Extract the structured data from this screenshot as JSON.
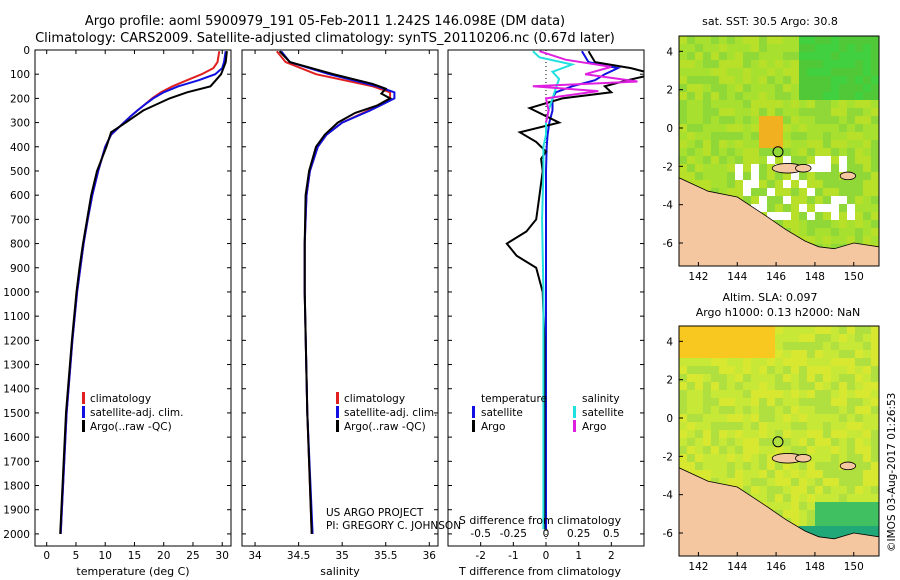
{
  "title": {
    "line1": "Argo profile: aoml 5900979_191 05-Feb-2011 1.242S 146.098E (DM data)",
    "line2": "Climatology: CARS2009. Satellite-adjusted climatology: synTS_20110206.nc (0.67d later)"
  },
  "colors": {
    "climatology": "#e02020",
    "satellite": "#1010e0",
    "argo": "#000000",
    "sat_s": "#20e0e0",
    "argo_s": "#e020e0",
    "land": "#f5c7a0"
  },
  "chart_data": [
    {
      "type": "line",
      "name": "temperature",
      "xlabel": "temperature (deg C)",
      "ylabel": "",
      "xlim": [
        -2,
        31.5
      ],
      "ylim": [
        2050,
        0
      ],
      "xticks": [
        0,
        5,
        10,
        15,
        20,
        25,
        30
      ],
      "yticks": [
        0,
        100,
        200,
        300,
        400,
        500,
        600,
        700,
        800,
        900,
        1000,
        1100,
        1200,
        1300,
        1400,
        1500,
        1600,
        1700,
        1800,
        1900,
        2000
      ],
      "legend": [
        "climatology",
        "satellite-adj. clim.",
        "Argo(..raw -QC)"
      ],
      "series": [
        {
          "name": "climatology",
          "color": "#e02020",
          "depth": [
            5,
            50,
            75,
            100,
            125,
            150,
            175,
            200,
            225,
            250,
            275,
            300,
            350,
            400,
            500,
            600,
            700,
            800,
            1000,
            1200,
            1500,
            2000
          ],
          "values": [
            29.5,
            29.2,
            28.5,
            26.5,
            24.0,
            21.5,
            19.5,
            18.0,
            16.8,
            15.5,
            14.3,
            13.2,
            11.0,
            10.0,
            8.8,
            7.8,
            7.0,
            6.3,
            5.2,
            4.4,
            3.4,
            2.4
          ]
        },
        {
          "name": "satellite-adj. clim.",
          "color": "#1010e0",
          "depth": [
            5,
            50,
            75,
            100,
            125,
            150,
            175,
            200,
            225,
            250,
            275,
            300,
            350,
            400,
            500,
            600,
            700,
            800,
            1000,
            1200,
            1500,
            2000
          ],
          "values": [
            30.6,
            30.3,
            30.0,
            28.8,
            26.0,
            22.5,
            20.0,
            18.2,
            16.8,
            15.5,
            14.3,
            13.2,
            11.0,
            10.0,
            8.8,
            7.8,
            7.0,
            6.3,
            5.2,
            4.4,
            3.4,
            2.4
          ]
        },
        {
          "name": "Argo(..raw -QC)",
          "color": "#000000",
          "depth": [
            5,
            50,
            100,
            150,
            175,
            200,
            250,
            300,
            340,
            400,
            500,
            600,
            700,
            800,
            900,
            1000,
            1200,
            1500,
            2000
          ],
          "values": [
            30.8,
            30.6,
            29.8,
            28.0,
            24.0,
            21.0,
            16.5,
            13.5,
            11.0,
            10.2,
            8.6,
            7.6,
            6.9,
            6.2,
            5.6,
            5.1,
            4.3,
            3.3,
            2.3
          ]
        }
      ]
    },
    {
      "type": "line",
      "name": "salinity",
      "xlabel": "salinity",
      "ylabel": "",
      "xlim": [
        33.85,
        36.1
      ],
      "ylim": [
        2050,
        0
      ],
      "xticks": [
        34,
        34.5,
        35,
        35.5,
        36
      ],
      "legend": [
        "climatology",
        "satellite-adj. clim.",
        "Argo(..raw -QC)"
      ],
      "annotations": [
        "US ARGO PROJECT",
        "PI: GREGORY C. JOHNSON"
      ],
      "series": [
        {
          "name": "climatology",
          "color": "#e02020",
          "depth": [
            5,
            50,
            100,
            150,
            175,
            200,
            250,
            300,
            350,
            400,
            500,
            600,
            800,
            1000,
            1500,
            2000
          ],
          "values": [
            34.25,
            34.35,
            34.7,
            35.35,
            35.55,
            35.55,
            35.3,
            35.0,
            34.82,
            34.72,
            34.63,
            34.59,
            34.57,
            34.57,
            34.6,
            34.65
          ]
        },
        {
          "name": "satellite-adj. clim.",
          "color": "#1010e0",
          "depth": [
            5,
            50,
            100,
            150,
            175,
            200,
            250,
            300,
            350,
            400,
            500,
            600,
            800,
            1000,
            1500,
            2000
          ],
          "values": [
            34.3,
            34.4,
            34.85,
            35.4,
            35.6,
            35.6,
            35.32,
            35.0,
            34.82,
            34.72,
            34.63,
            34.59,
            34.57,
            34.57,
            34.6,
            34.66
          ]
        },
        {
          "name": "Argo(..raw -QC)",
          "color": "#000000",
          "depth": [
            5,
            50,
            100,
            140,
            160,
            180,
            200,
            230,
            260,
            300,
            350,
            400,
            500,
            600,
            800,
            1000,
            1500,
            2000
          ],
          "values": [
            34.28,
            34.4,
            34.9,
            35.35,
            35.5,
            35.45,
            35.55,
            35.4,
            35.15,
            34.95,
            34.8,
            34.7,
            34.62,
            34.58,
            34.57,
            34.57,
            34.6,
            34.65
          ]
        }
      ]
    },
    {
      "type": "line",
      "name": "difference",
      "xlabel": "T difference from climatology",
      "xlabel_top": "S difference from climatology",
      "xlim": [
        -3,
        3
      ],
      "ylim": [
        2050,
        0
      ],
      "xticks_T": [
        -2,
        -1,
        0,
        1,
        2
      ],
      "xticks_S": [
        -0.5,
        -0.25,
        0,
        0.25,
        0.5
      ],
      "legend_titles": [
        "temperature",
        "salinity"
      ],
      "legend": [
        "satellite",
        "Argo",
        "satellite",
        "Argo"
      ],
      "series": [
        {
          "name": "satellite",
          "group": "temperature",
          "color": "#1010e0",
          "depth": [
            5,
            50,
            75,
            100,
            125,
            150,
            175,
            200,
            250,
            300,
            350,
            400,
            500,
            700,
            1000,
            1500,
            1980
          ],
          "values": [
            1.1,
            1.3,
            2.2,
            1.8,
            1.5,
            0.8,
            0.3,
            0.2,
            0.2,
            0.1,
            0.05,
            0.02,
            0.0,
            0.0,
            0.0,
            0.0,
            0.0
          ]
        },
        {
          "name": "Argo",
          "group": "temperature",
          "color": "#000000",
          "depth": [
            5,
            50,
            75,
            100,
            125,
            150,
            175,
            200,
            240,
            300,
            340,
            380,
            420,
            450,
            500,
            600,
            700,
            750,
            800,
            850,
            900,
            1000,
            1200,
            1500,
            1980
          ],
          "values": [
            1.3,
            1.5,
            2.6,
            3.3,
            2.5,
            1.8,
            2.0,
            0.5,
            -0.5,
            0.4,
            -0.8,
            -0.3,
            0.0,
            -0.15,
            -0.1,
            -0.2,
            -0.3,
            -0.6,
            -1.2,
            -0.9,
            -0.3,
            -0.1,
            -0.05,
            -0.05,
            -0.05
          ]
        },
        {
          "name": "satellite",
          "group": "salinity",
          "color": "#20e0e0",
          "depth": [
            5,
            30,
            60,
            90,
            120,
            150,
            200,
            250,
            300,
            350,
            400,
            500,
            700,
            1000,
            1500,
            1980
          ],
          "values": [
            -0.1,
            -0.05,
            0.2,
            0.05,
            0.1,
            0.08,
            0.05,
            0.02,
            0.0,
            0.0,
            -0.02,
            -0.02,
            -0.03,
            -0.02,
            -0.02,
            -0.02
          ]
        },
        {
          "name": "Argo",
          "group": "salinity",
          "color": "#e020e0",
          "depth": [
            5,
            40,
            70,
            100,
            130,
            150,
            170,
            200,
            250,
            300
          ],
          "values": [
            -0.05,
            0.15,
            0.5,
            0.3,
            0.7,
            -0.1,
            0.4,
            0.0,
            0.02,
            0.0
          ]
        }
      ]
    },
    {
      "type": "heatmap",
      "name": "map-sst",
      "title": "sat. SST: 30.5 Argo: 30.8",
      "xlim": [
        141,
        151.3
      ],
      "ylim": [
        -7.2,
        4.8
      ],
      "xticks": [
        142,
        144,
        146,
        148,
        150
      ],
      "yticks": [
        -6,
        -4,
        -2,
        0,
        2,
        4
      ],
      "marker": {
        "lon": 146.098,
        "lat": -1.242
      }
    },
    {
      "type": "heatmap",
      "name": "map-sla",
      "title": "Altim. SLA: 0.097",
      "subtitle": "Argo h1000: 0.13 h2000: NaN",
      "xlim": [
        141,
        151.3
      ],
      "ylim": [
        -7.2,
        4.8
      ],
      "xticks": [
        142,
        144,
        146,
        148,
        150
      ],
      "yticks": [
        -6,
        -4,
        -2,
        0,
        2,
        4
      ],
      "marker": {
        "lon": 146.098,
        "lat": -1.242
      }
    }
  ],
  "stamp": "©IMOS 03-Aug-2017 01:26:53"
}
